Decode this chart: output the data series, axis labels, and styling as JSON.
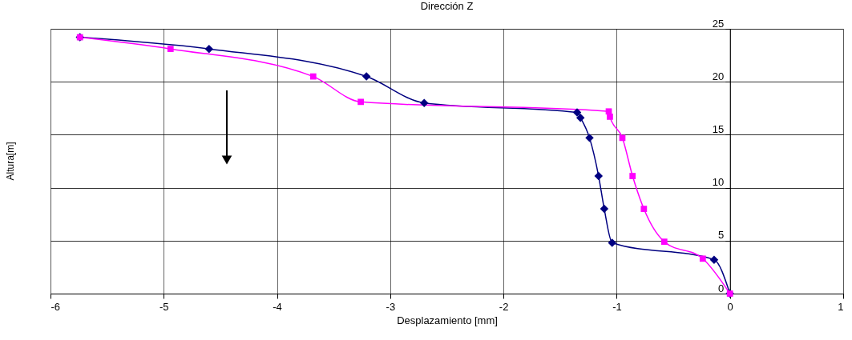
{
  "chart_data": {
    "type": "line",
    "title": "Dirección Z",
    "xlabel": "Desplazamiento [mm]",
    "ylabel": "Altura[m]",
    "xlim": [
      -6,
      1
    ],
    "xticks": [
      -6,
      -5,
      -4,
      -3,
      -2,
      -1,
      0,
      1
    ],
    "ylim": [
      0,
      25
    ],
    "yticks": [
      0,
      5,
      10,
      15,
      20,
      25
    ],
    "grid": true,
    "legend": false,
    "line_style": "solid",
    "series": [
      {
        "color": "#000080",
        "marker": "diamond",
        "x": [
          -5.74,
          -4.6,
          -3.21,
          -2.7,
          -1.35,
          -1.32,
          -1.24,
          -1.16,
          -1.11,
          -1.04,
          -0.14,
          0
        ],
        "values": [
          24.2,
          23.1,
          20.5,
          18.0,
          17.1,
          16.6,
          14.7,
          11.1,
          8.0,
          4.8,
          3.2,
          0
        ]
      },
      {
        "color": "#ff00ff",
        "marker": "square",
        "x": [
          -5.74,
          -4.94,
          -3.68,
          -3.26,
          -1.07,
          -1.06,
          -0.95,
          -0.86,
          -0.76,
          -0.58,
          -0.24,
          0
        ],
        "values": [
          24.2,
          23.1,
          20.5,
          18.1,
          17.2,
          16.7,
          14.7,
          11.1,
          8.0,
          4.9,
          3.3,
          0
        ]
      }
    ]
  }
}
